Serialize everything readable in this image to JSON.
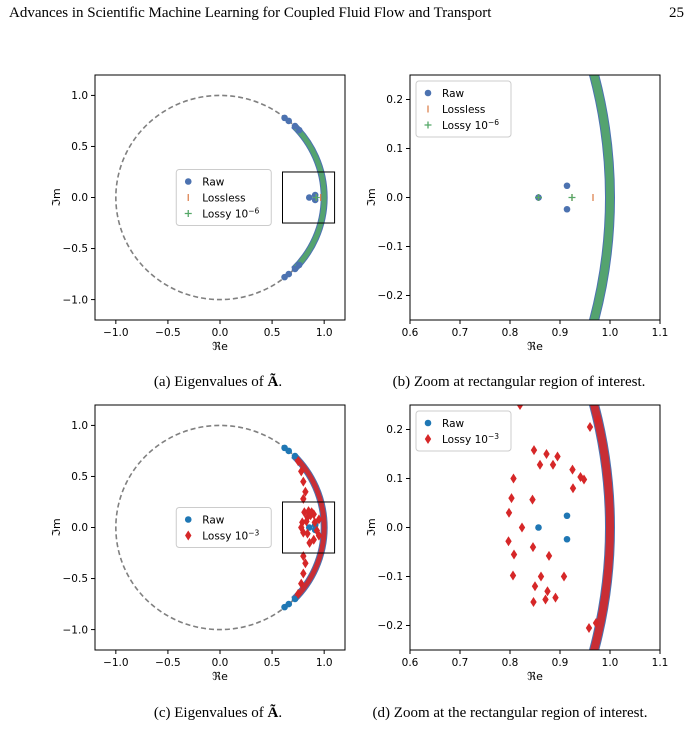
{
  "page": {
    "header_title": "Advances in Scientific Machine Learning for Coupled Fluid Flow and Transport",
    "page_number": "25"
  },
  "captions": {
    "a": {
      "prefix": "(a) Eigenvalues of ",
      "symbol": "Ã",
      "suffix": "."
    },
    "b": {
      "text": "(b) Zoom at rectangular region of interest."
    },
    "c": {
      "prefix": "(c) Eigenvalues of ",
      "symbol": "Ã",
      "suffix": "."
    },
    "d": {
      "text": "(d) Zoom at the rectangular region of interest."
    }
  },
  "colors": {
    "raw": "#4c72b0",
    "lossless": "#dd8452",
    "lossy6": "#55a868",
    "raw_c": "#1f77b4",
    "lossy3": "#d62728",
    "circle": "#808080"
  },
  "chart_data": [
    {
      "id": "a",
      "type": "scatter",
      "xlabel": "ℜe",
      "ylabel": "ℑm",
      "xlim": [
        -1.2,
        1.2
      ],
      "ylim": [
        -1.2,
        1.2
      ],
      "xticks": [
        "−1.0",
        "−0.5",
        "0.0",
        "0.5",
        "1.0"
      ],
      "xtick_values": [
        -1.0,
        -0.5,
        0.0,
        0.5,
        1.0
      ],
      "yticks": [
        "1.0",
        "0.5",
        "0.0",
        "−0.5",
        "−1.0"
      ],
      "ytick_values": [
        1.0,
        0.5,
        0.0,
        -0.5,
        -1.0
      ],
      "unit_circle": true,
      "arc_color": "#55a868",
      "arc_r": 1.0,
      "arc_angle_deg": 45,
      "roi": {
        "x": [
          0.6,
          1.1
        ],
        "y": [
          -0.25,
          0.25
        ]
      },
      "legend": [
        {
          "label": "Raw",
          "marker": "circle",
          "color": "#4c72b0"
        },
        {
          "label": "Lossless",
          "marker": "vline",
          "color": "#dd8452"
        },
        {
          "label": "Lossy 10",
          "sup": "−6",
          "marker": "plus",
          "color": "#55a868"
        }
      ],
      "legend_position": "center",
      "series": [
        {
          "name": "Raw",
          "marker": "circle",
          "color": "#4c72b0",
          "points": [
            [
              0.62,
              0.78
            ],
            [
              0.66,
              0.75
            ],
            [
              0.72,
              0.7
            ],
            [
              0.76,
              0.66
            ],
            [
              0.62,
              -0.78
            ],
            [
              0.66,
              -0.75
            ],
            [
              0.72,
              -0.7
            ],
            [
              0.76,
              -0.66
            ],
            [
              0.857,
              0.0
            ],
            [
              0.914,
              0.024
            ],
            [
              0.914,
              -0.024
            ]
          ]
        },
        {
          "name": "Lossless",
          "marker": "vline",
          "color": "#dd8452",
          "points": [
            [
              0.924,
              0.0
            ],
            [
              0.966,
              0.0
            ]
          ]
        },
        {
          "name": "Lossy 10−6",
          "marker": "plus",
          "color": "#55a868",
          "points": [
            [
              0.924,
              0.0
            ]
          ]
        }
      ]
    },
    {
      "id": "b",
      "type": "scatter",
      "xlabel": "ℜe",
      "ylabel": "ℑm",
      "xlim": [
        0.6,
        1.1
      ],
      "ylim": [
        -0.25,
        0.25
      ],
      "xticks": [
        "0.6",
        "0.7",
        "0.8",
        "0.9",
        "1.0",
        "1.1"
      ],
      "xtick_values": [
        0.6,
        0.7,
        0.8,
        0.9,
        1.0,
        1.1
      ],
      "yticks": [
        "0.2",
        "0.1",
        "0.0",
        "−0.1",
        "−0.2"
      ],
      "ytick_values": [
        0.2,
        0.1,
        0.0,
        -0.1,
        -0.2
      ],
      "unit_circle": false,
      "arc_color": "#55a868",
      "arc_r": 1.0,
      "arc_angle_deg": 16,
      "legend": [
        {
          "label": "Raw",
          "marker": "circle",
          "color": "#4c72b0"
        },
        {
          "label": "Lossless",
          "marker": "vline",
          "color": "#dd8452"
        },
        {
          "label": "Lossy 10",
          "sup": "−6",
          "marker": "plus",
          "color": "#55a868"
        }
      ],
      "legend_position": "top-left",
      "series": [
        {
          "name": "Raw",
          "marker": "circle",
          "color": "#4c72b0",
          "points": [
            [
              0.857,
              0.0
            ],
            [
              0.914,
              0.024
            ],
            [
              0.914,
              -0.024
            ]
          ]
        },
        {
          "name": "Lossless",
          "marker": "vline",
          "color": "#dd8452",
          "points": [
            [
              0.857,
              0.0
            ],
            [
              0.924,
              0.0
            ],
            [
              0.966,
              0.0
            ]
          ]
        },
        {
          "name": "Lossy 10−6",
          "marker": "plus",
          "color": "#55a868",
          "points": [
            [
              0.857,
              0.0
            ],
            [
              0.924,
              0.0
            ]
          ]
        }
      ]
    },
    {
      "id": "c",
      "type": "scatter",
      "xlabel": "ℜe",
      "ylabel": "ℑm",
      "xlim": [
        -1.2,
        1.2
      ],
      "ylim": [
        -1.2,
        1.2
      ],
      "xticks": [
        "−1.0",
        "−0.5",
        "0.0",
        "0.5",
        "1.0"
      ],
      "xtick_values": [
        -1.0,
        -0.5,
        0.0,
        0.5,
        1.0
      ],
      "yticks": [
        "1.0",
        "0.5",
        "0.0",
        "−0.5",
        "−1.0"
      ],
      "ytick_values": [
        1.0,
        0.5,
        0.0,
        -0.5,
        -1.0
      ],
      "unit_circle": true,
      "arc_color": "#d62728",
      "arc_r": 1.0,
      "arc_angle_deg": 45,
      "roi": {
        "x": [
          0.6,
          1.1
        ],
        "y": [
          -0.25,
          0.25
        ]
      },
      "legend": [
        {
          "label": "Raw",
          "marker": "circle",
          "color": "#1f77b4"
        },
        {
          "label": "Lossy 10",
          "sup": "−3",
          "marker": "diamond",
          "color": "#d62728"
        }
      ],
      "legend_position": "center",
      "series": [
        {
          "name": "Raw",
          "marker": "circle",
          "color": "#1f77b4",
          "points": [
            [
              0.62,
              0.78
            ],
            [
              0.66,
              0.75
            ],
            [
              0.72,
              0.7
            ],
            [
              0.62,
              -0.78
            ],
            [
              0.66,
              -0.75
            ],
            [
              0.72,
              -0.7
            ],
            [
              0.857,
              0.0
            ],
            [
              0.914,
              0.024
            ],
            [
              0.914,
              -0.024
            ]
          ]
        },
        {
          "name": "Lossy 10−3",
          "marker": "diamond",
          "color": "#d62728",
          "points": [
            [
              0.75,
              0.65
            ],
            [
              0.78,
              0.55
            ],
            [
              0.8,
              0.45
            ],
            [
              0.82,
              0.35
            ],
            [
              0.8,
              0.28
            ],
            [
              0.75,
              -0.65
            ],
            [
              0.78,
              -0.55
            ],
            [
              0.8,
              -0.45
            ],
            [
              0.82,
              -0.35
            ],
            [
              0.8,
              -0.28
            ],
            [
              0.81,
              0.15
            ],
            [
              0.85,
              0.16
            ],
            [
              0.88,
              0.15
            ],
            [
              0.84,
              0.1
            ],
            [
              0.87,
              0.12
            ],
            [
              0.9,
              0.13
            ],
            [
              0.79,
              0.05
            ],
            [
              0.83,
              0.06
            ],
            [
              0.95,
              0.08
            ],
            [
              0.8,
              -0.05
            ],
            [
              0.84,
              -0.06
            ],
            [
              0.9,
              -0.12
            ],
            [
              0.95,
              -0.08
            ],
            [
              0.86,
              -0.15
            ],
            [
              0.91,
              0.05
            ],
            [
              0.93,
              -0.03
            ],
            [
              0.78,
              0.0
            ]
          ]
        }
      ]
    },
    {
      "id": "d",
      "type": "scatter",
      "xlabel": "ℜe",
      "ylabel": "ℑm",
      "xlim": [
        0.6,
        1.1
      ],
      "ylim": [
        -0.25,
        0.25
      ],
      "xticks": [
        "0.6",
        "0.7",
        "0.8",
        "0.9",
        "1.0",
        "1.1"
      ],
      "xtick_values": [
        0.6,
        0.7,
        0.8,
        0.9,
        1.0,
        1.1
      ],
      "yticks": [
        "0.2",
        "0.1",
        "0.0",
        "−0.1",
        "−0.2"
      ],
      "ytick_values": [
        0.2,
        0.1,
        0.0,
        -0.1,
        -0.2
      ],
      "unit_circle": false,
      "arc_color": "#d62728",
      "arc_r": 1.0,
      "arc_angle_deg": 16,
      "legend": [
        {
          "label": "Raw",
          "marker": "circle",
          "color": "#1f77b4"
        },
        {
          "label": "Lossy 10",
          "sup": "−3",
          "marker": "diamond",
          "color": "#d62728"
        }
      ],
      "legend_position": "top-left",
      "series": [
        {
          "name": "Raw",
          "marker": "circle",
          "color": "#1f77b4",
          "points": [
            [
              0.857,
              0.0
            ],
            [
              0.914,
              0.024
            ],
            [
              0.914,
              -0.024
            ]
          ]
        },
        {
          "name": "Lossy 10−3",
          "marker": "diamond",
          "color": "#d62728",
          "points": [
            [
              0.82,
              0.25
            ],
            [
              0.848,
              0.158
            ],
            [
              0.873,
              0.15
            ],
            [
              0.895,
              0.145
            ],
            [
              0.86,
              0.128
            ],
            [
              0.886,
              0.128
            ],
            [
              0.807,
              0.1
            ],
            [
              0.925,
              0.118
            ],
            [
              0.941,
              0.103
            ],
            [
              0.948,
              0.098
            ],
            [
              0.926,
              0.08
            ],
            [
              0.803,
              0.06
            ],
            [
              0.845,
              0.057
            ],
            [
              0.798,
              0.03
            ],
            [
              0.824,
              0.0
            ],
            [
              0.797,
              -0.028
            ],
            [
              0.846,
              -0.04
            ],
            [
              0.808,
              -0.055
            ],
            [
              0.878,
              -0.058
            ],
            [
              0.806,
              -0.098
            ],
            [
              0.862,
              -0.1
            ],
            [
              0.908,
              -0.1
            ],
            [
              0.85,
              -0.12
            ],
            [
              0.875,
              -0.13
            ],
            [
              0.891,
              -0.143
            ],
            [
              0.871,
              -0.147
            ],
            [
              0.847,
              -0.152
            ],
            [
              0.96,
              0.205
            ],
            [
              0.975,
              0.22
            ],
            [
              0.958,
              -0.205
            ],
            [
              0.972,
              -0.195
            ]
          ]
        }
      ]
    }
  ]
}
